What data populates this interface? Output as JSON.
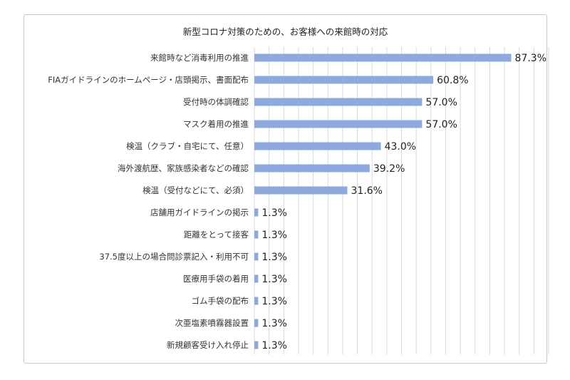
{
  "chart_data": {
    "type": "bar",
    "orientation": "horizontal",
    "title": "新型コロナ対策のための、お客様への来館時の対応",
    "categories": [
      "来館時など消毒利用の推進",
      "FIAガイドラインのホームページ・店頭掲示、書面配布",
      "受付時の体調確認",
      "マスク着用の推進",
      "検温（クラブ・自宅にて、任意）",
      "海外渡航歴、家族感染者などの確認",
      "検温（受付などにて、必須）",
      "店舗用ガイドラインの掲示",
      "距離をとって接客",
      "37.5度以上の場合問診票記入・利用不可",
      "医療用手袋の着用",
      "ゴム手袋の配布",
      "次亜塩素噴霧器設置",
      "新規顧客受け入れ停止"
    ],
    "values": [
      87.3,
      60.8,
      57.0,
      57.0,
      43.0,
      39.2,
      31.6,
      1.3,
      1.3,
      1.3,
      1.3,
      1.3,
      1.3,
      1.3
    ],
    "value_labels": [
      "87.3%",
      "60.8%",
      "57.0%",
      "57.0%",
      "43.0%",
      "39.2%",
      "31.6%",
      "1.3%",
      "1.3%",
      "1.3%",
      "1.3%",
      "1.3%",
      "1.3%",
      "1.3%"
    ],
    "xlim": [
      0,
      100
    ],
    "grid": true,
    "colors": {
      "bar": "#8ea9db",
      "grid": "#d9d9d9"
    }
  }
}
